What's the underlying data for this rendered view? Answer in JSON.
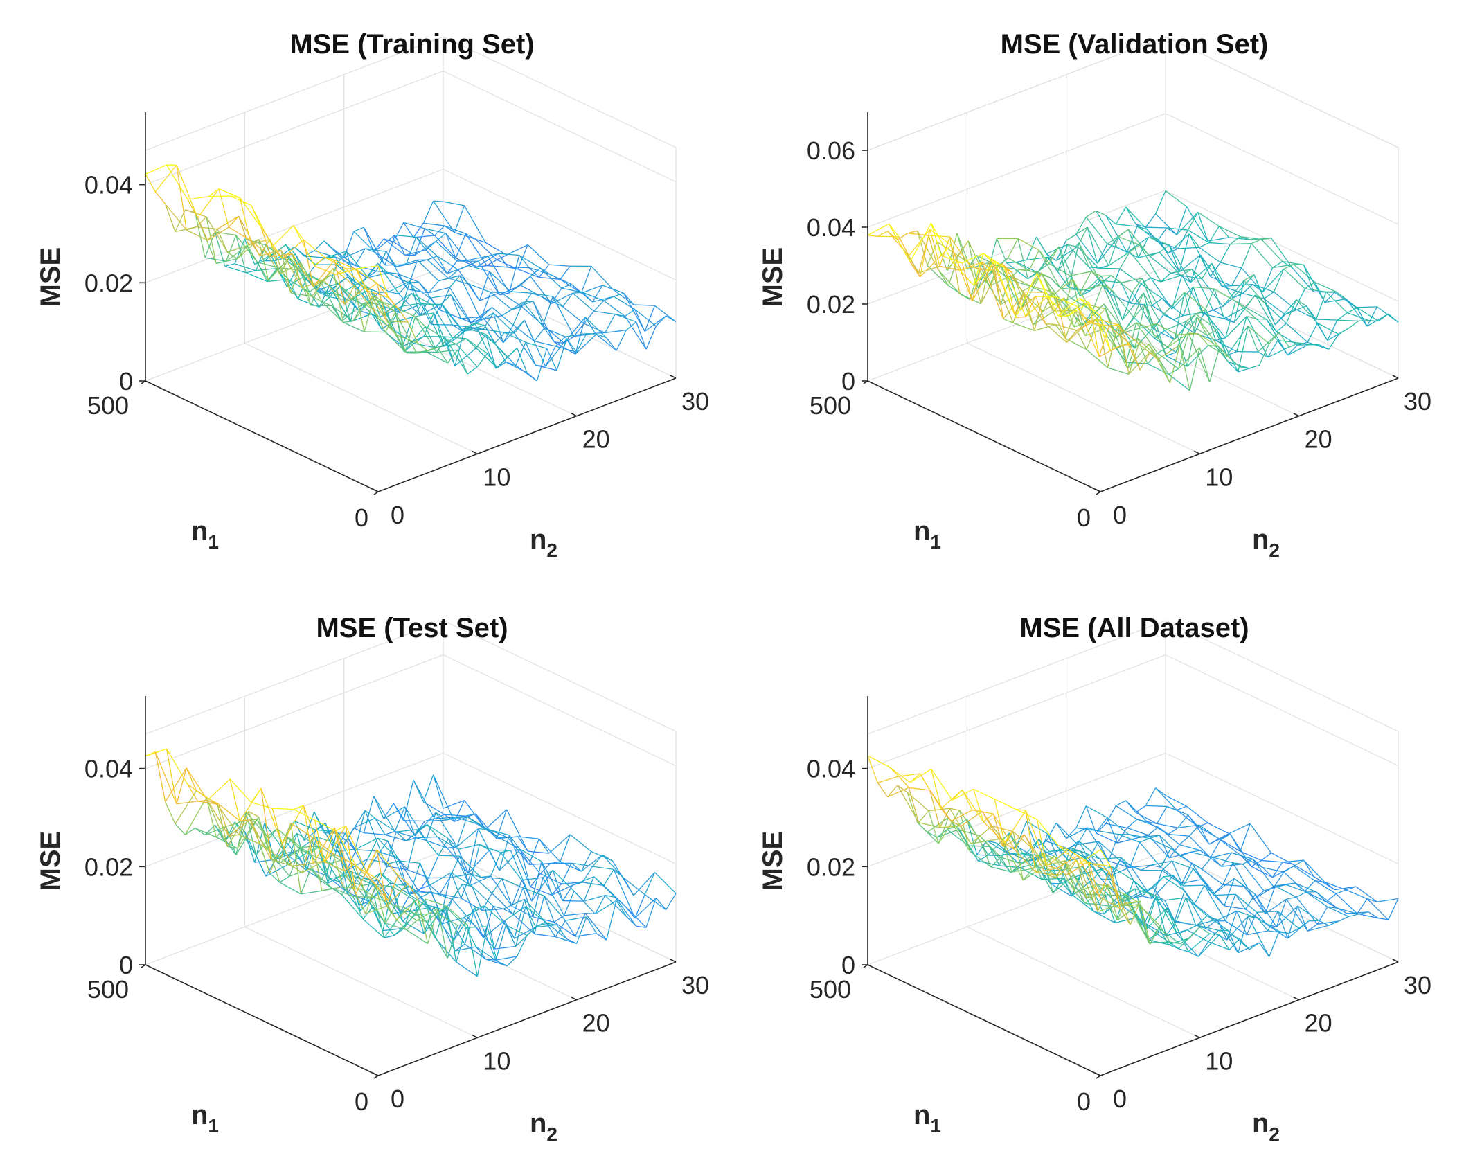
{
  "chart_data": [
    {
      "type": "surface",
      "title": "MSE (Training Set)",
      "xlabel": "n",
      "xlabel_sub": "1",
      "ylabel": "n",
      "ylabel_sub": "2",
      "zlabel": "MSE",
      "x_ticks": [
        "500",
        "0"
      ],
      "y_ticks": [
        "0",
        "10",
        "20",
        "30"
      ],
      "z_ticks": [
        "0",
        "0.02",
        "0.04"
      ],
      "xlim": [
        0,
        500
      ],
      "ylim": [
        0,
        30
      ],
      "zlim": [
        0,
        0.047
      ],
      "grid": true,
      "colormap": [
        "#3e26a8",
        "#2e87f7",
        "#1fb8b5",
        "#8ccc5b",
        "#f5b834",
        "#f9fb14"
      ],
      "surface": {
        "n1_start": 500,
        "n1_end": 0,
        "n1_rows": 12,
        "n2_start": 0,
        "n2_end": 30,
        "n2_cols": 31,
        "base": 0.045,
        "decay": 0.22,
        "floor": 0.011,
        "noise": 0.0055,
        "seed": 11
      }
    },
    {
      "type": "surface",
      "title": "MSE (Validation Set)",
      "xlabel": "n",
      "xlabel_sub": "1",
      "ylabel": "n",
      "ylabel_sub": "2",
      "zlabel": "MSE",
      "x_ticks": [
        "500",
        "0"
      ],
      "y_ticks": [
        "0",
        "10",
        "20",
        "30"
      ],
      "z_ticks": [
        "0",
        "0.02",
        "0.04",
        "0.06"
      ],
      "xlim": [
        0,
        500
      ],
      "ylim": [
        0,
        30
      ],
      "zlim": [
        0,
        0.06
      ],
      "grid": true,
      "colormap": [
        "#3e26a8",
        "#2e87f7",
        "#1fb8b5",
        "#8ccc5b",
        "#f5b834",
        "#f9fb14"
      ],
      "surface": {
        "n1_start": 500,
        "n1_end": 0,
        "n1_rows": 12,
        "n2_start": 0,
        "n2_end": 30,
        "n2_cols": 31,
        "base": 0.042,
        "decay": 0.25,
        "floor": 0.016,
        "noise": 0.008,
        "seed": 23
      }
    },
    {
      "type": "surface",
      "title": "MSE (Test Set)",
      "xlabel": "n",
      "xlabel_sub": "1",
      "ylabel": "n",
      "ylabel_sub": "2",
      "zlabel": "MSE",
      "x_ticks": [
        "500",
        "0"
      ],
      "y_ticks": [
        "0",
        "10",
        "20",
        "30"
      ],
      "z_ticks": [
        "0",
        "0.02",
        "0.04"
      ],
      "xlim": [
        0,
        500
      ],
      "ylim": [
        0,
        30
      ],
      "zlim": [
        0,
        0.047
      ],
      "grid": true,
      "colormap": [
        "#3e26a8",
        "#2e87f7",
        "#1fb8b5",
        "#8ccc5b",
        "#f5b834",
        "#f9fb14"
      ],
      "surface": {
        "n1_start": 500,
        "n1_end": 0,
        "n1_rows": 12,
        "n2_start": 0,
        "n2_end": 30,
        "n2_cols": 31,
        "base": 0.046,
        "decay": 0.2,
        "floor": 0.012,
        "noise": 0.007,
        "seed": 37
      }
    },
    {
      "type": "surface",
      "title": "MSE (All Dataset)",
      "xlabel": "n",
      "xlabel_sub": "1",
      "ylabel": "n",
      "ylabel_sub": "2",
      "zlabel": "MSE",
      "x_ticks": [
        "500",
        "0"
      ],
      "y_ticks": [
        "0",
        "10",
        "20",
        "30"
      ],
      "z_ticks": [
        "0",
        "0.02",
        "0.04"
      ],
      "xlim": [
        0,
        500
      ],
      "ylim": [
        0,
        30
      ],
      "zlim": [
        0,
        0.047
      ],
      "grid": true,
      "colormap": [
        "#3e26a8",
        "#2e87f7",
        "#1fb8b5",
        "#8ccc5b",
        "#f5b834",
        "#f9fb14"
      ],
      "surface": {
        "n1_start": 500,
        "n1_end": 0,
        "n1_rows": 12,
        "n2_start": 0,
        "n2_end": 30,
        "n2_cols": 31,
        "base": 0.045,
        "decay": 0.23,
        "floor": 0.011,
        "noise": 0.005,
        "seed": 53
      }
    }
  ]
}
